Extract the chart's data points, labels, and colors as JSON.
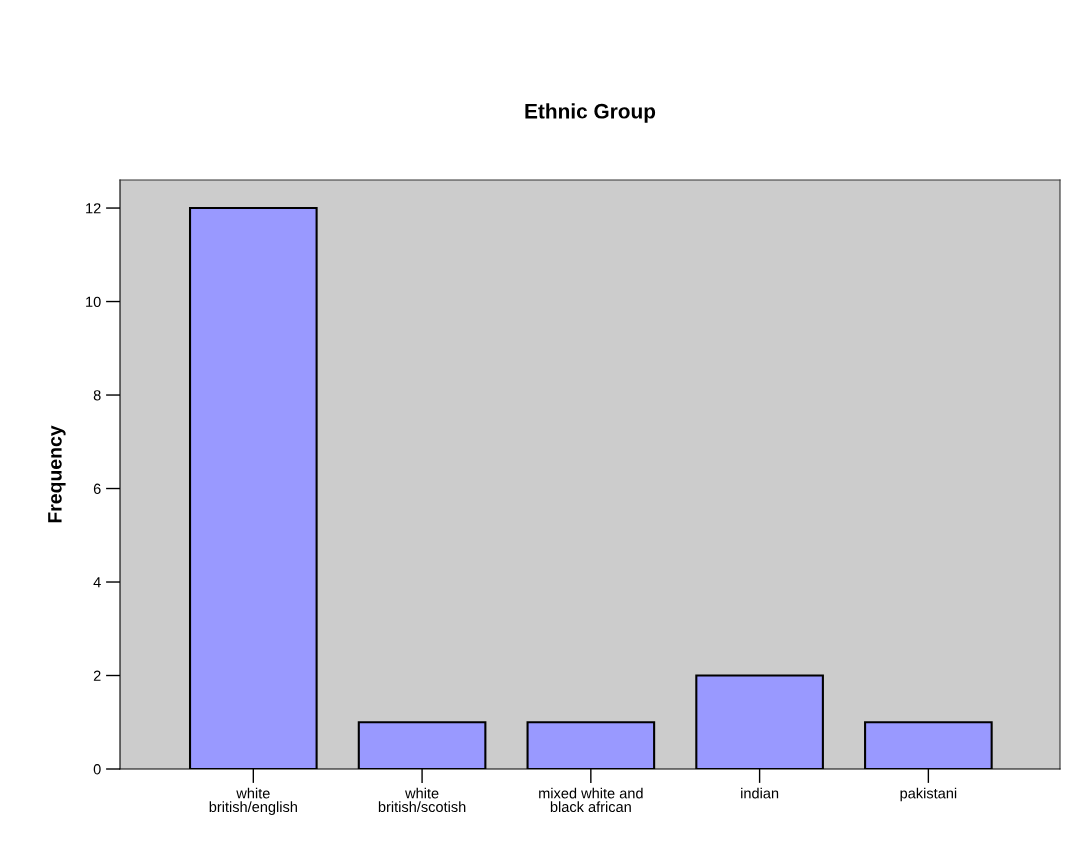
{
  "chart_data": {
    "type": "bar",
    "title": "Ethnic Group",
    "ylabel": "Frequency",
    "categories": [
      "white\nbritish/english",
      "white\nbritish/scotish",
      "mixed white and\nblack african",
      "indian",
      "pakistani"
    ],
    "values": [
      12,
      1,
      1,
      2,
      1
    ],
    "color": "#9999ff",
    "ylim": [
      0,
      12.6
    ],
    "yticks": [
      0,
      2,
      4,
      6,
      8,
      10,
      12
    ],
    "grid": false,
    "legend": false
  }
}
